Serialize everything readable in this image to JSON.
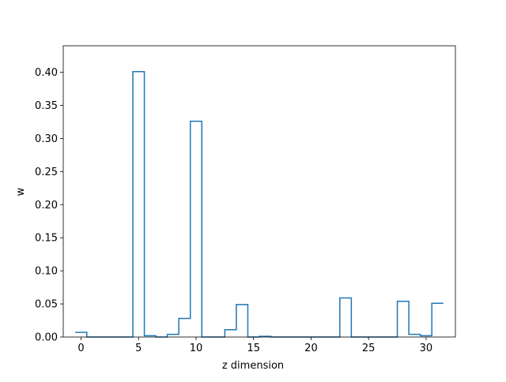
{
  "chart_data": {
    "type": "line",
    "step": "post",
    "title": "",
    "xlabel": "z dimension",
    "ylabel": "w",
    "xlim": [
      -1.55,
      32.55
    ],
    "ylim": [
      0,
      0.44
    ],
    "x_ticks": [
      0,
      5,
      10,
      15,
      20,
      25,
      30
    ],
    "y_ticks": [
      0.0,
      0.05,
      0.1,
      0.15,
      0.2,
      0.25,
      0.3,
      0.35,
      0.4
    ],
    "y_tick_labels": [
      "0.00",
      "0.05",
      "0.10",
      "0.15",
      "0.20",
      "0.25",
      "0.30",
      "0.35",
      "0.40"
    ],
    "grid": false,
    "series": [
      {
        "color": "#1f77b4",
        "x": [
          0,
          1,
          2,
          3,
          4,
          5,
          6,
          7,
          8,
          9,
          10,
          11,
          12,
          13,
          14,
          15,
          16,
          17,
          18,
          19,
          20,
          21,
          22,
          23,
          24,
          25,
          26,
          27,
          28,
          29,
          30,
          31
        ],
        "values": [
          0.007,
          0.0,
          0.0,
          0.0,
          0.0,
          0.401,
          0.002,
          0.0,
          0.004,
          0.028,
          0.326,
          0.0,
          0.0,
          0.011,
          0.049,
          0.0,
          0.001,
          0.0,
          0.0,
          0.0,
          0.0,
          0.0,
          0.0,
          0.059,
          0.0,
          0.0,
          0.0,
          0.0,
          0.054,
          0.004,
          0.002,
          0.051
        ]
      }
    ]
  }
}
